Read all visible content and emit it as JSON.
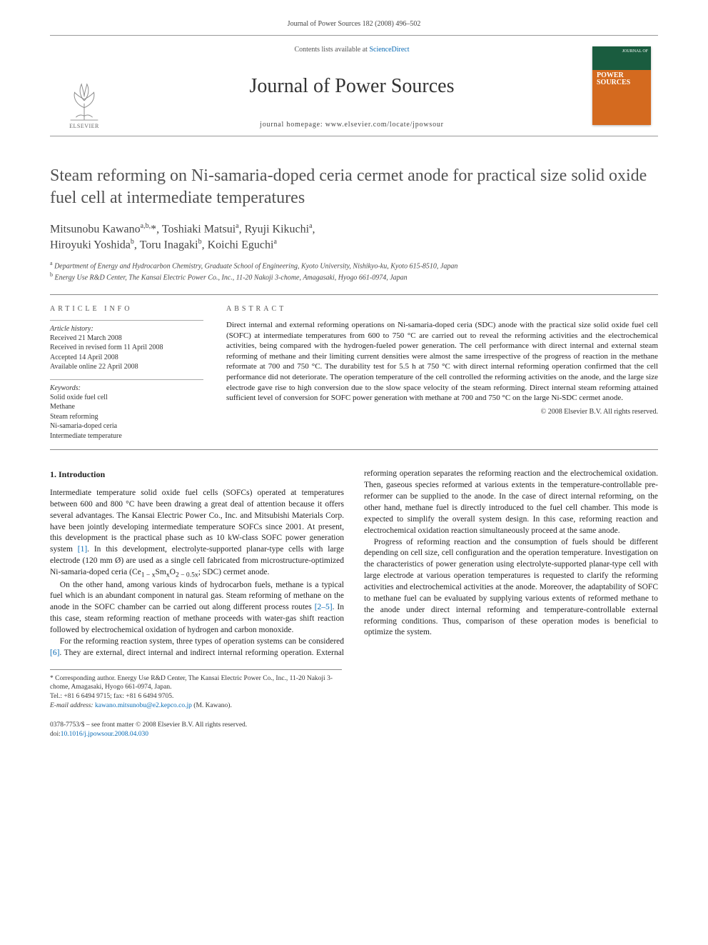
{
  "header": {
    "citation": "Journal of Power Sources 182 (2008) 496–502"
  },
  "masthead": {
    "contents_prefix": "Contents lists available at ",
    "contents_link": "ScienceDirect",
    "journal": "Journal of Power Sources",
    "homepage_prefix": "journal homepage: ",
    "homepage_url": "www.elsevier.com/locate/jpowsour",
    "publisher": "ELSEVIER",
    "cover_top": "JOURNAL OF",
    "cover_title1": "POWER",
    "cover_title2": "SOURCES"
  },
  "article": {
    "title": "Steam reforming on Ni-samaria-doped ceria cermet anode for practical size solid oxide fuel cell at intermediate temperatures",
    "authors_html": "Mitsunobu Kawano<sup>a,b,</sup><span class='ast'>*</span>, Toshiaki Matsui<sup>a</sup>, Ryuji Kikuchi<sup>a</sup>,<br>Hiroyuki Yoshida<sup>b</sup>, Toru Inagaki<sup>b</sup>, Koichi Eguchi<sup>a</sup>",
    "affiliations": [
      "Department of Energy and Hydrocarbon Chemistry, Graduate School of Engineering, Kyoto University, Nishikyo-ku, Kyoto 615-8510, Japan",
      "Energy Use R&D Center, The Kansai Electric Power Co., Inc., 11-20 Nakoji 3-chome, Amagasaki, Hyogo 661-0974, Japan"
    ]
  },
  "article_info": {
    "label": "article info",
    "history_head": "Article history:",
    "history": [
      "Received 21 March 2008",
      "Received in revised form 11 April 2008",
      "Accepted 14 April 2008",
      "Available online 22 April 2008"
    ],
    "keywords_head": "Keywords:",
    "keywords": [
      "Solid oxide fuel cell",
      "Methane",
      "Steam reforming",
      "Ni-samaria-doped ceria",
      "Intermediate temperature"
    ]
  },
  "abstract": {
    "label": "abstract",
    "text": "Direct internal and external reforming operations on Ni-samaria-doped ceria (SDC) anode with the practical size solid oxide fuel cell (SOFC) at intermediate temperatures from 600 to 750 °C are carried out to reveal the reforming activities and the electrochemical activities, being compared with the hydrogen-fueled power generation. The cell performance with direct internal and external steam reforming of methane and their limiting current densities were almost the same irrespective of the progress of reaction in the methane reformate at 700 and 750 °C. The durability test for 5.5 h at 750 °C with direct internal reforming operation confirmed that the cell performance did not deteriorate. The operation temperature of the cell controlled the reforming activities on the anode, and the large size electrode gave rise to high conversion due to the slow space velocity of the steam reforming. Direct internal steam reforming attained sufficient level of conversion for SOFC power generation with methane at 700 and 750 °C on the large Ni-SDC cermet anode.",
    "copyright": "© 2008 Elsevier B.V. All rights reserved."
  },
  "body": {
    "section_heading": "1.  Introduction",
    "p1a": "Intermediate temperature solid oxide fuel cells (SOFCs) operated at temperatures between 600 and 800 °C have been drawing a great deal of attention because it offers several advantages. The Kansai Electric Power Co., Inc. and Mitsubishi Materials Corp. have been jointly developing intermediate temperature SOFCs since 2001. At present, this development is the practical phase such as 10 kW-class SOFC power generation system ",
    "ref1": "[1]",
    "p1b": ". In this development, electrolyte-supported planar-type cells with large electrode (120 mm Ø) are used as a single cell fabricated from microstructure-optimized Ni-samaria-doped ceria (Ce",
    "sub1": "1 − x",
    "mid1": "Sm",
    "sub2": "x",
    "mid2": "O",
    "sub3": "2 − 0.5x",
    "p1c": "; SDC) cermet anode.",
    "p2a": "On the other hand, among various kinds of hydrocarbon fuels, methane is a typical fuel which is an abundant component in natural gas. Steam reforming of methane on the anode in the SOFC chamber can be carried out along different process routes ",
    "ref2": "[2–5]",
    "p2b": ". In this case, steam reforming reaction of methane proceeds with water-gas shift reaction followed by electrochemical oxidation of hydrogen and carbon monoxide.",
    "p3a": "For the reforming reaction system, three types of operation systems can be considered ",
    "ref3": "[6]",
    "p3b": ". They are external, direct internal and indirect internal reforming operation. External reforming operation separates the reforming reaction and the electrochemical oxidation. Then, gaseous species reformed at various extents in the temperature-controllable pre-reformer can be supplied to the anode. In the case of direct internal reforming, on the other hand, methane fuel is directly introduced to the fuel cell chamber. This mode is expected to simplify the overall system design. In this case, reforming reaction and electrochemical oxidation reaction simultaneously proceed at the same anode.",
    "p4": "Progress of reforming reaction and the consumption of fuels should be different depending on cell size, cell configuration and the operation temperature. Investigation on the characteristics of power generation using electrolyte-supported planar-type cell with large electrode at various operation temperatures is requested to clarify the reforming activities and electrochemical activities at the anode. Moreover, the adaptability of SOFC to methane fuel can be evaluated by supplying various extents of reformed methane to the anode under direct internal reforming and temperature-controllable external reforming conditions. Thus, comparison of these operation modes is beneficial to optimize the system."
  },
  "footnotes": {
    "corr": "* Corresponding author. Energy Use R&D Center, The Kansai Electric Power Co., Inc., 11-20 Nakoji 3-chome, Amagasaki, Hyogo 661-0974, Japan.",
    "tel": "Tel.: +81 6 6494 9715; fax: +81 6 6494 9705.",
    "email_label": "E-mail address:",
    "email": "kawano.mitsunobu@e2.kepco.co.jp",
    "email_who": " (M. Kawano)."
  },
  "bottom": {
    "line1": "0378-7753/$ – see front matter © 2008 Elsevier B.V. All rights reserved.",
    "doi_prefix": "doi:",
    "doi": "10.1016/j.jpowsour.2008.04.030"
  },
  "colors": {
    "link": "#0a6bb5",
    "rule": "#888888",
    "text": "#2b2b2b"
  }
}
